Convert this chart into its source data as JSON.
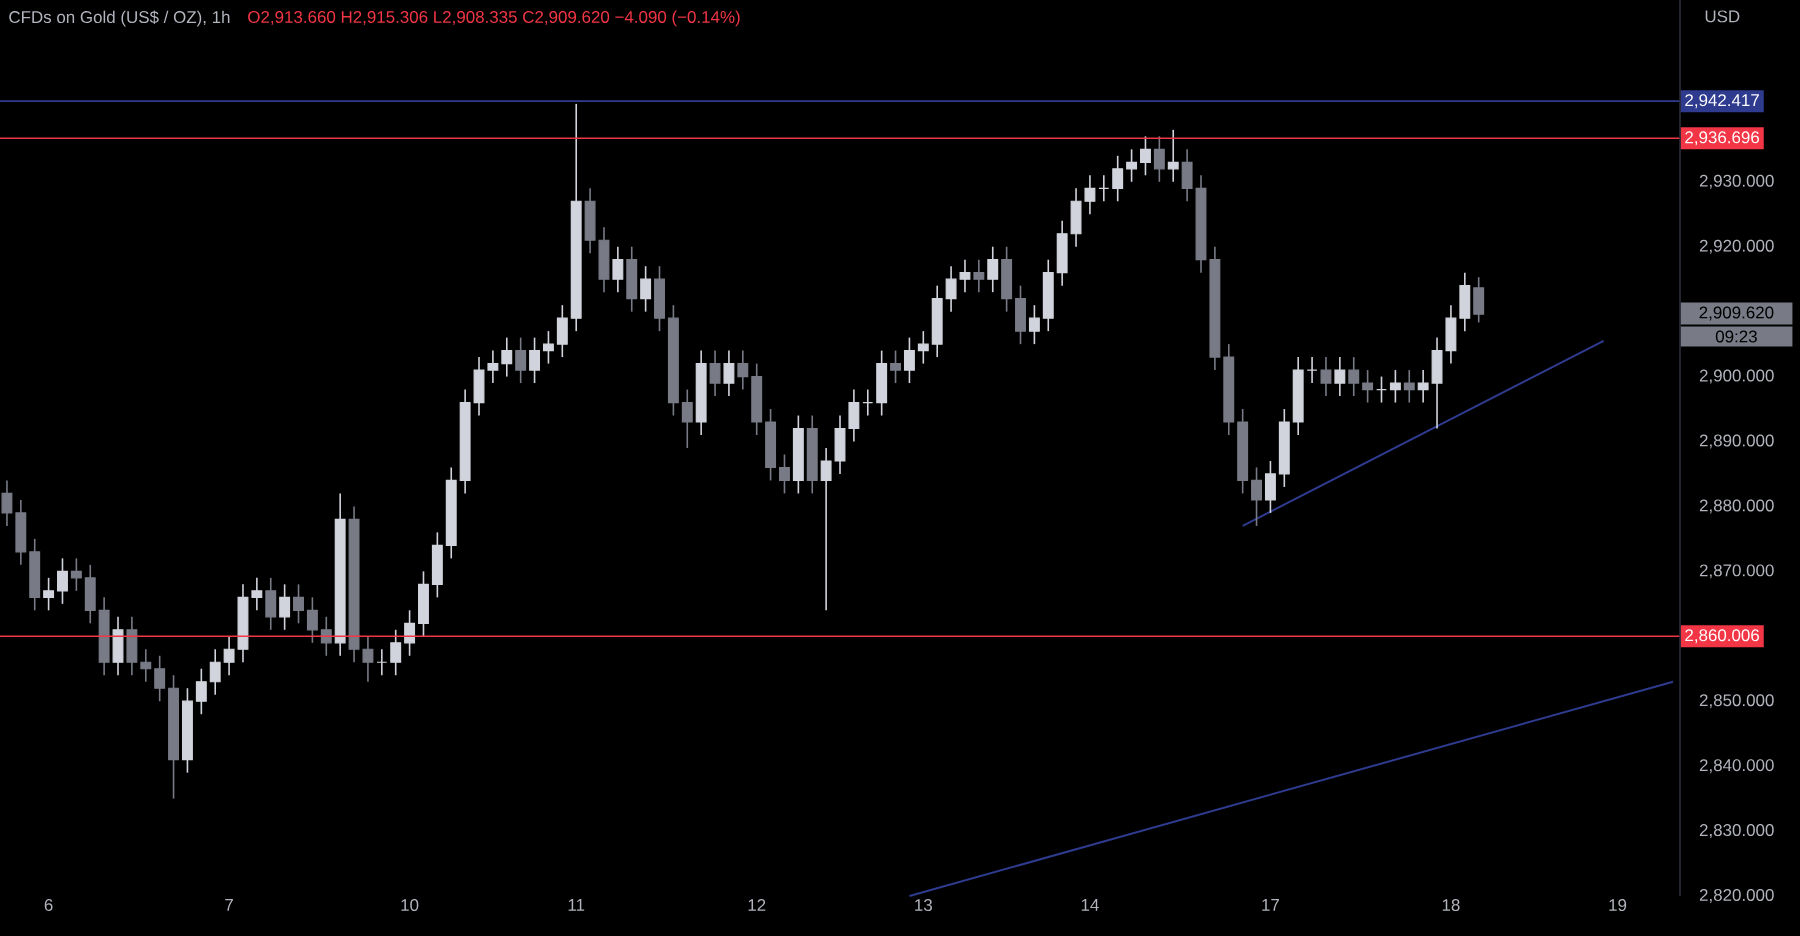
{
  "chart_data": {
    "type": "candlestick",
    "title": "CFDs on Gold (US$ / OZ), 1h",
    "subtitle": "O2,913.660 H2,915.306 L2,908.335 C2,909.620 −4.090 (−0.14%)",
    "ylabel": "USD",
    "categories": [
      null,
      null,
      null,
      "6",
      null,
      null,
      null,
      null,
      null,
      null,
      null,
      null,
      null,
      null,
      null,
      null,
      "7",
      null,
      null,
      null,
      null,
      null,
      null,
      null,
      null,
      null,
      null,
      null,
      null,
      "10",
      null,
      null,
      null,
      null,
      null,
      null,
      null,
      null,
      null,
      null,
      null,
      "11",
      null,
      null,
      null,
      null,
      null,
      null,
      null,
      null,
      null,
      null,
      null,
      null,
      "12",
      null,
      null,
      null,
      null,
      null,
      null,
      null,
      null,
      null,
      null,
      null,
      "13",
      null,
      null,
      null,
      null,
      null,
      null,
      null,
      null,
      null,
      null,
      null,
      "14",
      null,
      null,
      null,
      null,
      null,
      null,
      null,
      null,
      null,
      null,
      null,
      null,
      "17",
      null,
      null,
      null,
      null,
      null,
      null,
      null,
      null,
      null,
      null,
      null,
      null,
      "18",
      null,
      null,
      null,
      null,
      null,
      null,
      null,
      null,
      null,
      null,
      null,
      "19",
      null,
      null,
      null,
      null
    ],
    "ohlc": [
      [
        2882,
        2884,
        2877,
        2879
      ],
      [
        2879,
        2881,
        2871,
        2873
      ],
      [
        2873,
        2875,
        2864,
        2866
      ],
      [
        2866,
        2869,
        2864,
        2867
      ],
      [
        2867,
        2872,
        2865,
        2870
      ],
      [
        2870,
        2872,
        2867,
        2869
      ],
      [
        2869,
        2871,
        2862,
        2864
      ],
      [
        2864,
        2866,
        2854,
        2856
      ],
      [
        2856,
        2863,
        2854,
        2861
      ],
      [
        2861,
        2863,
        2854,
        2856
      ],
      [
        2856,
        2858,
        2853,
        2855
      ],
      [
        2855,
        2857,
        2850,
        2852
      ],
      [
        2852,
        2854,
        2835,
        2841
      ],
      [
        2841,
        2852,
        2839,
        2850
      ],
      [
        2850,
        2855,
        2848,
        2853
      ],
      [
        2853,
        2858,
        2851,
        2856
      ],
      [
        2856,
        2860,
        2854,
        2858
      ],
      [
        2858,
        2868,
        2856,
        2866
      ],
      [
        2866,
        2869,
        2864,
        2867
      ],
      [
        2867,
        2869,
        2861,
        2863
      ],
      [
        2863,
        2868,
        2861,
        2866
      ],
      [
        2866,
        2868,
        2862,
        2864
      ],
      [
        2864,
        2866,
        2859,
        2861
      ],
      [
        2861,
        2863,
        2857,
        2859
      ],
      [
        2859,
        2882,
        2857,
        2878
      ],
      [
        2878,
        2880,
        2856,
        2858
      ],
      [
        2858,
        2860,
        2853,
        2856
      ],
      [
        2856,
        2858,
        2854,
        2856
      ],
      [
        2856,
        2861,
        2854,
        2859
      ],
      [
        2859,
        2864,
        2857,
        2862
      ],
      [
        2862,
        2870,
        2860,
        2868
      ],
      [
        2868,
        2876,
        2866,
        2874
      ],
      [
        2874,
        2886,
        2872,
        2884
      ],
      [
        2884,
        2898,
        2882,
        2896
      ],
      [
        2896,
        2903,
        2894,
        2901
      ],
      [
        2901,
        2904,
        2899,
        2902
      ],
      [
        2902,
        2906,
        2900,
        2904
      ],
      [
        2904,
        2906,
        2899,
        2901
      ],
      [
        2901,
        2906,
        2899,
        2904
      ],
      [
        2904,
        2907,
        2902,
        2905
      ],
      [
        2905,
        2911,
        2903,
        2909
      ],
      [
        2909,
        2942,
        2907,
        2927
      ],
      [
        2927,
        2929,
        2919,
        2921
      ],
      [
        2921,
        2923,
        2913,
        2915
      ],
      [
        2915,
        2920,
        2913,
        2918
      ],
      [
        2918,
        2920,
        2910,
        2912
      ],
      [
        2912,
        2917,
        2910,
        2915
      ],
      [
        2915,
        2917,
        2907,
        2909
      ],
      [
        2909,
        2911,
        2894,
        2896
      ],
      [
        2896,
        2898,
        2889,
        2893
      ],
      [
        2893,
        2904,
        2891,
        2902
      ],
      [
        2902,
        2904,
        2897,
        2899
      ],
      [
        2899,
        2904,
        2897,
        2902
      ],
      [
        2902,
        2904,
        2898,
        2900
      ],
      [
        2900,
        2902,
        2891,
        2893
      ],
      [
        2893,
        2895,
        2884,
        2886
      ],
      [
        2886,
        2888,
        2882,
        2884
      ],
      [
        2884,
        2894,
        2882,
        2892
      ],
      [
        2892,
        2894,
        2882,
        2884
      ],
      [
        2884,
        2889,
        2864,
        2887
      ],
      [
        2887,
        2894,
        2885,
        2892
      ],
      [
        2892,
        2898,
        2890,
        2896
      ],
      [
        2896,
        2898,
        2894,
        2896
      ],
      [
        2896,
        2904,
        2894,
        2902
      ],
      [
        2902,
        2904,
        2899,
        2901
      ],
      [
        2901,
        2906,
        2899,
        2904
      ],
      [
        2904,
        2907,
        2902,
        2905
      ],
      [
        2905,
        2914,
        2903,
        2912
      ],
      [
        2912,
        2917,
        2910,
        2915
      ],
      [
        2915,
        2918,
        2913,
        2916
      ],
      [
        2916,
        2918,
        2913,
        2915
      ],
      [
        2915,
        2920,
        2913,
        2918
      ],
      [
        2918,
        2920,
        2910,
        2912
      ],
      [
        2912,
        2914,
        2905,
        2907
      ],
      [
        2907,
        2911,
        2905,
        2909
      ],
      [
        2909,
        2918,
        2907,
        2916
      ],
      [
        2916,
        2924,
        2914,
        2922
      ],
      [
        2922,
        2929,
        2920,
        2927
      ],
      [
        2927,
        2931,
        2925,
        2929
      ],
      [
        2929,
        2931,
        2927,
        2929
      ],
      [
        2929,
        2934,
        2927,
        2932
      ],
      [
        2932,
        2935,
        2930,
        2933
      ],
      [
        2933,
        2937,
        2931,
        2935
      ],
      [
        2935,
        2937,
        2930,
        2932
      ],
      [
        2932,
        2938,
        2930,
        2933
      ],
      [
        2933,
        2935,
        2927,
        2929
      ],
      [
        2929,
        2931,
        2916,
        2918
      ],
      [
        2918,
        2920,
        2901,
        2903
      ],
      [
        2903,
        2905,
        2891,
        2893
      ],
      [
        2893,
        2895,
        2882,
        2884
      ],
      [
        2884,
        2886,
        2877,
        2881
      ],
      [
        2881,
        2887,
        2879,
        2885
      ],
      [
        2885,
        2895,
        2883,
        2893
      ],
      [
        2893,
        2903,
        2891,
        2901
      ],
      [
        2901,
        2903,
        2899,
        2901
      ],
      [
        2901,
        2903,
        2897,
        2899
      ],
      [
        2899,
        2903,
        2897,
        2901
      ],
      [
        2901,
        2903,
        2897,
        2899
      ],
      [
        2899,
        2901,
        2896,
        2898
      ],
      [
        2898,
        2900,
        2896,
        2898
      ],
      [
        2898,
        2901,
        2896,
        2899
      ],
      [
        2899,
        2901,
        2896,
        2898
      ],
      [
        2898,
        2901,
        2896,
        2899
      ],
      [
        2899,
        2906,
        2892,
        2904
      ],
      [
        2904,
        2911,
        2902,
        2909
      ],
      [
        2909,
        2916,
        2907,
        2914
      ],
      [
        2913.66,
        2915.306,
        2908.335,
        2909.62
      ],
      null,
      null,
      null,
      null,
      null,
      null,
      null,
      null,
      null,
      null,
      null,
      null,
      null,
      null
    ],
    "colors": [
      "#787b86",
      "#787b86",
      "#787b86",
      "#d1d4dc",
      "#d1d4dc",
      "#787b86",
      "#787b86",
      "#787b86",
      "#d1d4dc",
      "#787b86",
      "#787b86",
      "#787b86",
      "#787b86",
      "#d1d4dc",
      "#d1d4dc",
      "#d1d4dc",
      "#d1d4dc",
      "#d1d4dc",
      "#d1d4dc",
      "#787b86",
      "#d1d4dc",
      "#787b86",
      "#787b86",
      "#787b86",
      "#d1d4dc",
      "#787b86",
      "#787b86",
      "#d1d4dc",
      "#d1d4dc",
      "#d1d4dc",
      "#d1d4dc",
      "#d1d4dc",
      "#d1d4dc",
      "#d1d4dc",
      "#d1d4dc",
      "#d1d4dc",
      "#d1d4dc",
      "#787b86",
      "#d1d4dc",
      "#d1d4dc",
      "#d1d4dc",
      "#d1d4dc",
      "#787b86",
      "#787b86",
      "#d1d4dc",
      "#787b86",
      "#d1d4dc",
      "#787b86",
      "#787b86",
      "#787b86",
      "#d1d4dc",
      "#787b86",
      "#d1d4dc",
      "#787b86",
      "#787b86",
      "#787b86",
      "#787b86",
      "#d1d4dc",
      "#787b86",
      "#d1d4dc",
      "#d1d4dc",
      "#d1d4dc",
      "#d1d4dc",
      "#d1d4dc",
      "#787b86",
      "#d1d4dc",
      "#d1d4dc",
      "#d1d4dc",
      "#d1d4dc",
      "#d1d4dc",
      "#787b86",
      "#d1d4dc",
      "#787b86",
      "#787b86",
      "#d1d4dc",
      "#d1d4dc",
      "#d1d4dc",
      "#d1d4dc",
      "#d1d4dc",
      "#d1d4dc",
      "#d1d4dc",
      "#d1d4dc",
      "#d1d4dc",
      "#787b86",
      "#d1d4dc",
      "#787b86",
      "#787b86",
      "#787b86",
      "#787b86",
      "#787b86",
      "#787b86",
      "#d1d4dc",
      "#d1d4dc",
      "#d1d4dc",
      "#d1d4dc",
      "#787b86",
      "#d1d4dc",
      "#787b86",
      "#787b86",
      "#d1d4dc",
      "#d1d4dc",
      "#787b86",
      "#d1d4dc",
      "#d1d4dc",
      "#d1d4dc",
      "#d1d4dc",
      "#787b86",
      null,
      null,
      null,
      null,
      null,
      null,
      null,
      null,
      null,
      null,
      null,
      null,
      null,
      null
    ],
    "series": [
      {
        "type": "line",
        "color": "#2f3b8f",
        "values": [
          null,
          null,
          null,
          null,
          null,
          null,
          null,
          null,
          null,
          null,
          null,
          null,
          null,
          null,
          null,
          null,
          null,
          null,
          null,
          null,
          null,
          null,
          null,
          null,
          null,
          null,
          null,
          null,
          null,
          null,
          null,
          null,
          null,
          null,
          null,
          null,
          null,
          null,
          null,
          null,
          null,
          null,
          null,
          null,
          null,
          null,
          null,
          null,
          null,
          null,
          null,
          null,
          null,
          null,
          null,
          null,
          null,
          null,
          null,
          null,
          null,
          null,
          null,
          null,
          null,
          null,
          null,
          null,
          null,
          null,
          null,
          null,
          null,
          null,
          null,
          null,
          null,
          null,
          null,
          null,
          null,
          null,
          null,
          null,
          null,
          null,
          null,
          null,
          null,
          2877,
          null,
          null,
          null,
          null,
          null,
          null,
          null,
          null,
          null,
          null,
          null,
          null,
          null,
          null,
          null,
          null,
          null,
          null,
          null,
          null,
          null,
          null,
          null,
          null,
          null,
          2905.5,
          null,
          null,
          null,
          null,
          null
        ]
      },
      {
        "type": "line",
        "color": "#2f3b8f",
        "values": [
          null,
          null,
          null,
          null,
          null,
          null,
          null,
          null,
          null,
          null,
          null,
          null,
          null,
          null,
          null,
          null,
          null,
          null,
          null,
          null,
          null,
          null,
          null,
          null,
          null,
          null,
          null,
          null,
          null,
          null,
          null,
          null,
          null,
          null,
          null,
          null,
          null,
          null,
          null,
          null,
          null,
          null,
          null,
          null,
          null,
          null,
          null,
          null,
          null,
          null,
          null,
          null,
          null,
          null,
          null,
          null,
          null,
          null,
          null,
          null,
          null,
          null,
          null,
          null,
          null,
          2820,
          null,
          null,
          null,
          null,
          null,
          null,
          null,
          null,
          null,
          null,
          null,
          null,
          null,
          null,
          null,
          null,
          null,
          null,
          null,
          null,
          null,
          null,
          null,
          null,
          null,
          null,
          null,
          null,
          null,
          null,
          null,
          null,
          null,
          null,
          null,
          null,
          null,
          null,
          null,
          null,
          null,
          null,
          null,
          null,
          null,
          null,
          null,
          null,
          null,
          null,
          null,
          null,
          null,
          null,
          2853
        ]
      }
    ],
    "ref_lines": [
      {
        "axis": "y",
        "value": 2942.417,
        "label": "2,942.417",
        "color": "#2f3b8f"
      },
      {
        "axis": "y",
        "value": 2936.696,
        "label": "2,936.696",
        "color": "#f23645"
      },
      {
        "axis": "y",
        "value": 2860.006,
        "label": "2,860.006",
        "color": "#f23645"
      }
    ],
    "annotations": [
      "2,909.620",
      "09:23"
    ],
    "ylim": [
      2820,
      2958
    ],
    "yticks": [
      {
        "value": 2820,
        "label": "2,820.000"
      },
      {
        "value": 2830,
        "label": "2,830.000"
      },
      {
        "value": 2840,
        "label": "2,840.000"
      },
      {
        "value": 2850,
        "label": "2,850.000"
      },
      {
        "value": 2870,
        "label": "2,870.000"
      },
      {
        "value": 2880,
        "label": "2,880.000"
      },
      {
        "value": 2890,
        "label": "2,890.000"
      },
      {
        "value": 2900,
        "label": "2,900.000"
      },
      {
        "value": 2920,
        "label": "2,920.000"
      },
      {
        "value": 2930,
        "label": "2,930.000"
      }
    ],
    "grid": false
  }
}
